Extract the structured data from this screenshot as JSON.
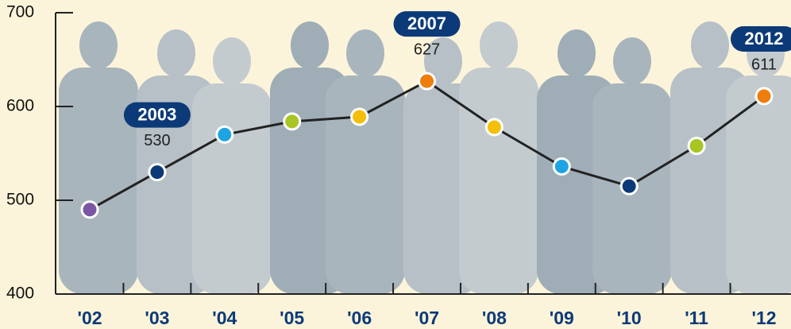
{
  "chart_data": {
    "type": "line",
    "categories": [
      "'02",
      "'03",
      "'04",
      "'05",
      "'06",
      "'07",
      "'08",
      "'09",
      "'10",
      "'11",
      "'12"
    ],
    "values": [
      490,
      530,
      570,
      584,
      589,
      627,
      578,
      536,
      515,
      558,
      611
    ],
    "point_colors": [
      "#7a56a3",
      "#0c3a78",
      "#1ea4e2",
      "#a7c523",
      "#f4bf0a",
      "#ef7d0c",
      "#f4bf0a",
      "#1ea4e2",
      "#0c3a78",
      "#a7c523",
      "#ef7d0c"
    ],
    "callouts": [
      null,
      "2003",
      null,
      null,
      null,
      "2007",
      null,
      null,
      null,
      null,
      "2012"
    ],
    "line_color": "#222222",
    "ylim": [
      400,
      700
    ],
    "yticks": [
      400,
      500,
      600,
      700
    ]
  }
}
